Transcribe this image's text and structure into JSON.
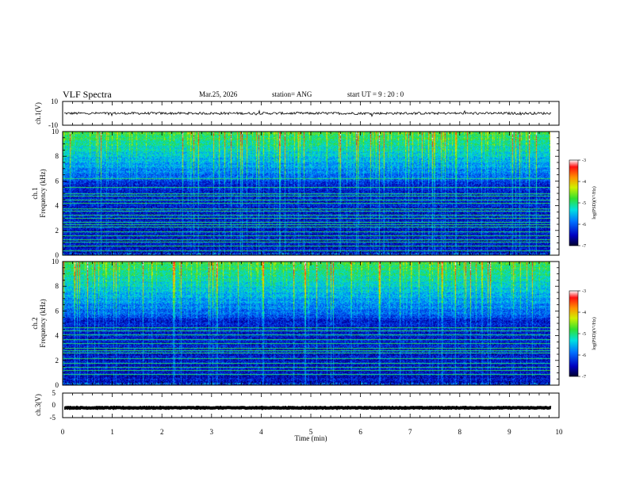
{
  "header": {
    "title": "VLF Spectra",
    "date": "Mar.25, 2026",
    "station": "station= ANG",
    "start": "start  UT =   9 : 20 : 0"
  },
  "chart_data": [
    {
      "type": "line",
      "name": "ch1-waveform",
      "ylabel": "ch.1(V)",
      "ylim": [
        -10,
        10
      ],
      "yticks": [
        "10",
        "-10"
      ],
      "level": 0.0,
      "noise": 1.0
    },
    {
      "type": "heatmap",
      "name": "ch1-spectrogram",
      "ylabel": "Frequency (kHz)",
      "channel_label": "ch.1",
      "ylim": [
        0,
        10
      ],
      "yticks": [
        "0",
        "2",
        "4",
        "6",
        "8",
        "10"
      ],
      "xlim_min": [
        0,
        9.85
      ],
      "lines_khz": [
        0.4,
        0.8,
        1.1,
        1.3,
        1.6,
        1.9,
        2.3,
        2.5,
        2.7,
        3.0,
        3.3,
        3.6,
        3.8,
        4.2,
        4.5,
        4.8,
        5.0,
        5.5,
        6.2
      ],
      "colorbar": {
        "label": "log(PSD)(V²/Hz)",
        "ticks": [
          "-3",
          "-4",
          "-5",
          "-6",
          "-7"
        ],
        "range": [
          -7,
          -3
        ]
      }
    },
    {
      "type": "heatmap",
      "name": "ch2-spectrogram",
      "ylabel": "Frequency (kHz)",
      "channel_label": "ch.2",
      "ylim": [
        0,
        10
      ],
      "yticks": [
        "0",
        "2",
        "4",
        "6",
        "8",
        "10"
      ],
      "xlim_min": [
        0,
        9.85
      ],
      "lines_khz": [
        0.9,
        1.2,
        1.5,
        1.8,
        2.2,
        2.6,
        2.8,
        3.0,
        3.4,
        3.7,
        4.1,
        4.4,
        4.7
      ],
      "colorbar": {
        "label": "log(PSD)(V²/Hz)",
        "ticks": [
          "-3",
          "-4",
          "-5",
          "-6",
          "-7"
        ],
        "range": [
          -7,
          -3
        ]
      }
    },
    {
      "type": "line",
      "name": "ch3-waveform",
      "ylabel": "ch.3(V)",
      "ylim": [
        -5,
        5
      ],
      "yticks": [
        "5",
        "0",
        "-5"
      ],
      "level": -1.0,
      "noise": 0.15
    }
  ],
  "x_axis": {
    "label": "Time (min)",
    "range": [
      0,
      10
    ],
    "ticks": [
      "0",
      "1",
      "2",
      "3",
      "4",
      "5",
      "6",
      "7",
      "8",
      "9",
      "10"
    ]
  }
}
